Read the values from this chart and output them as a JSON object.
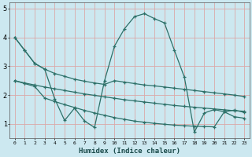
{
  "xlabel": "Humidex (Indice chaleur)",
  "background_color": "#cce8f0",
  "grid_color": "#dba8a8",
  "line_color": "#2d7068",
  "xlim": [
    -0.5,
    23.5
  ],
  "ylim": [
    0.5,
    5.2
  ],
  "yticks": [
    1,
    2,
    3,
    4,
    5
  ],
  "xticks": [
    0,
    1,
    2,
    3,
    4,
    5,
    6,
    7,
    8,
    9,
    10,
    11,
    12,
    13,
    14,
    15,
    16,
    17,
    18,
    19,
    20,
    21,
    22,
    23
  ],
  "series1_x": [
    0,
    1,
    2,
    3,
    4,
    5,
    6,
    7,
    8,
    9,
    10,
    11,
    12,
    13,
    14,
    15,
    16,
    17,
    18,
    19,
    20,
    21,
    22,
    23
  ],
  "series1_y": [
    4.0,
    3.55,
    3.1,
    2.9,
    2.75,
    2.65,
    2.55,
    2.48,
    2.42,
    2.37,
    2.5,
    2.45,
    2.4,
    2.35,
    2.32,
    2.28,
    2.24,
    2.2,
    2.16,
    2.12,
    2.08,
    2.04,
    2.0,
    1.95
  ],
  "series2_x": [
    0,
    1,
    2,
    3,
    4,
    5,
    6,
    7,
    8,
    9,
    10,
    11,
    12,
    13,
    14,
    15,
    16,
    17,
    18,
    19,
    20,
    21,
    22,
    23
  ],
  "series2_y": [
    4.0,
    3.55,
    3.1,
    2.9,
    1.88,
    1.12,
    1.55,
    1.1,
    0.88,
    2.5,
    3.7,
    4.3,
    4.72,
    4.82,
    4.65,
    4.5,
    3.55,
    2.62,
    0.72,
    1.38,
    1.5,
    1.42,
    1.25,
    1.2
  ],
  "series3_x": [
    0,
    1,
    2,
    3,
    4,
    5,
    6,
    7,
    8,
    9,
    10,
    11,
    12,
    13,
    14,
    15,
    16,
    17,
    18,
    19,
    20,
    21,
    22,
    23
  ],
  "series3_y": [
    2.5,
    2.42,
    2.35,
    2.28,
    2.22,
    2.16,
    2.1,
    2.04,
    1.99,
    1.94,
    1.89,
    1.84,
    1.8,
    1.76,
    1.72,
    1.68,
    1.64,
    1.61,
    1.58,
    1.55,
    1.52,
    1.49,
    1.46,
    1.44
  ],
  "series4_x": [
    0,
    1,
    2,
    3,
    4,
    5,
    6,
    7,
    8,
    9,
    10,
    11,
    12,
    13,
    14,
    15,
    16,
    17,
    18,
    19,
    20,
    21,
    22,
    23
  ],
  "series4_y": [
    2.5,
    2.4,
    2.3,
    1.9,
    1.78,
    1.67,
    1.57,
    1.47,
    1.38,
    1.3,
    1.22,
    1.16,
    1.1,
    1.06,
    1.02,
    0.99,
    0.96,
    0.94,
    0.92,
    0.91,
    0.9,
    1.42,
    1.48,
    1.4
  ]
}
